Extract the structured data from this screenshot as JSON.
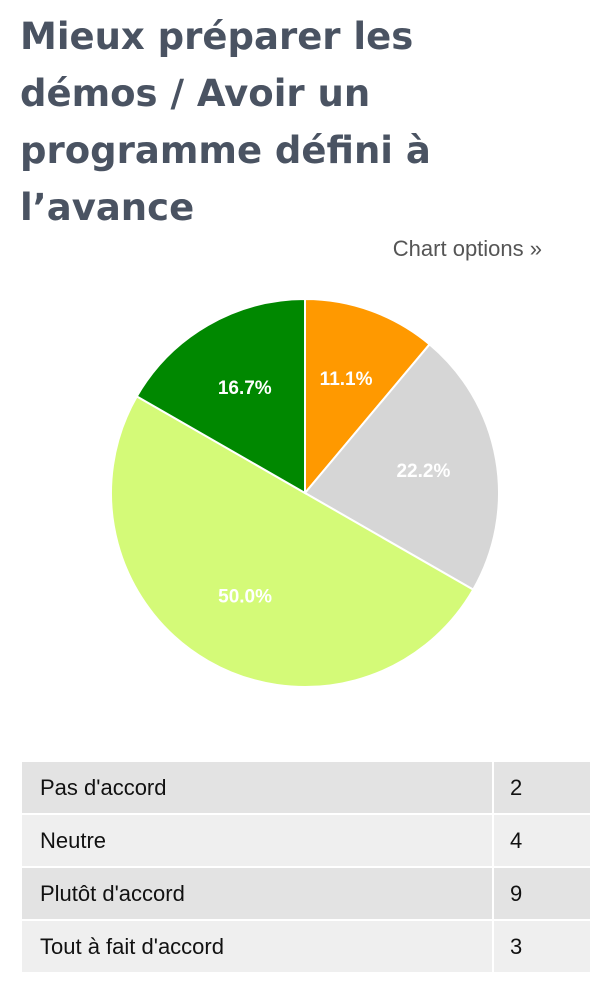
{
  "title": "Mieux préparer les démos / Avoir un programme défini à l’avance",
  "chart_options": "Chart options »",
  "chart_data": {
    "type": "pie",
    "values": [
      11.1,
      22.2,
      50.0,
      16.7
    ],
    "value_labels": [
      "11.1%",
      "22.2%",
      "50.0%",
      "16.7%"
    ],
    "colors": [
      "#ff9900",
      "#d6d6d6",
      "#d4fa78",
      "#008800"
    ]
  },
  "table": {
    "rows": [
      [
        "Pas d'accord",
        "2"
      ],
      [
        "Neutre",
        "4"
      ],
      [
        "Plutôt d'accord",
        "9"
      ],
      [
        "Tout à fait d'accord",
        "3"
      ]
    ]
  }
}
